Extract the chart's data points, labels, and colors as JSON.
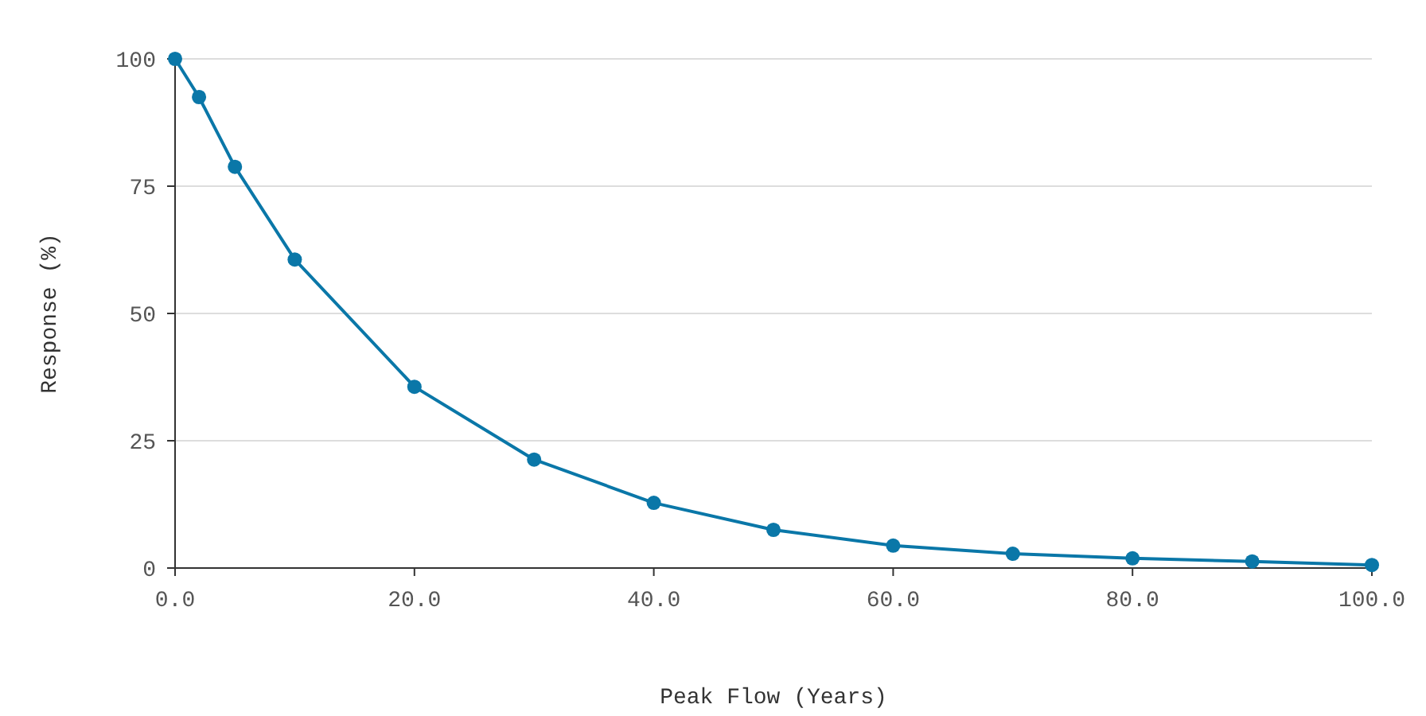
{
  "chart_data": {
    "type": "line",
    "xlabel": "Peak Flow (Years)",
    "ylabel": "Response (%)",
    "x": [
      0,
      2,
      5,
      10,
      20,
      30,
      40,
      50,
      60,
      70,
      80,
      90,
      100
    ],
    "series": [
      {
        "color": "#0a77a8",
        "values": [
          100,
          92.5,
          78.8,
          60.6,
          35.6,
          21.3,
          12.8,
          7.5,
          4.4,
          2.8,
          1.9,
          1.3,
          0.6
        ]
      }
    ],
    "xlim": [
      0,
      100
    ],
    "xticks": [
      {
        "value": 0,
        "label": "0.0"
      },
      {
        "value": 20,
        "label": "20.0"
      },
      {
        "value": 40,
        "label": "40.0"
      },
      {
        "value": 60,
        "label": "60.0"
      },
      {
        "value": 80,
        "label": "80.0"
      },
      {
        "value": 100,
        "label": "100.0"
      }
    ],
    "ylim": [
      0,
      100
    ],
    "yticks": [
      0,
      25,
      50,
      75,
      100
    ],
    "grid": "y",
    "marker": "circle",
    "line_style": "solid"
  }
}
